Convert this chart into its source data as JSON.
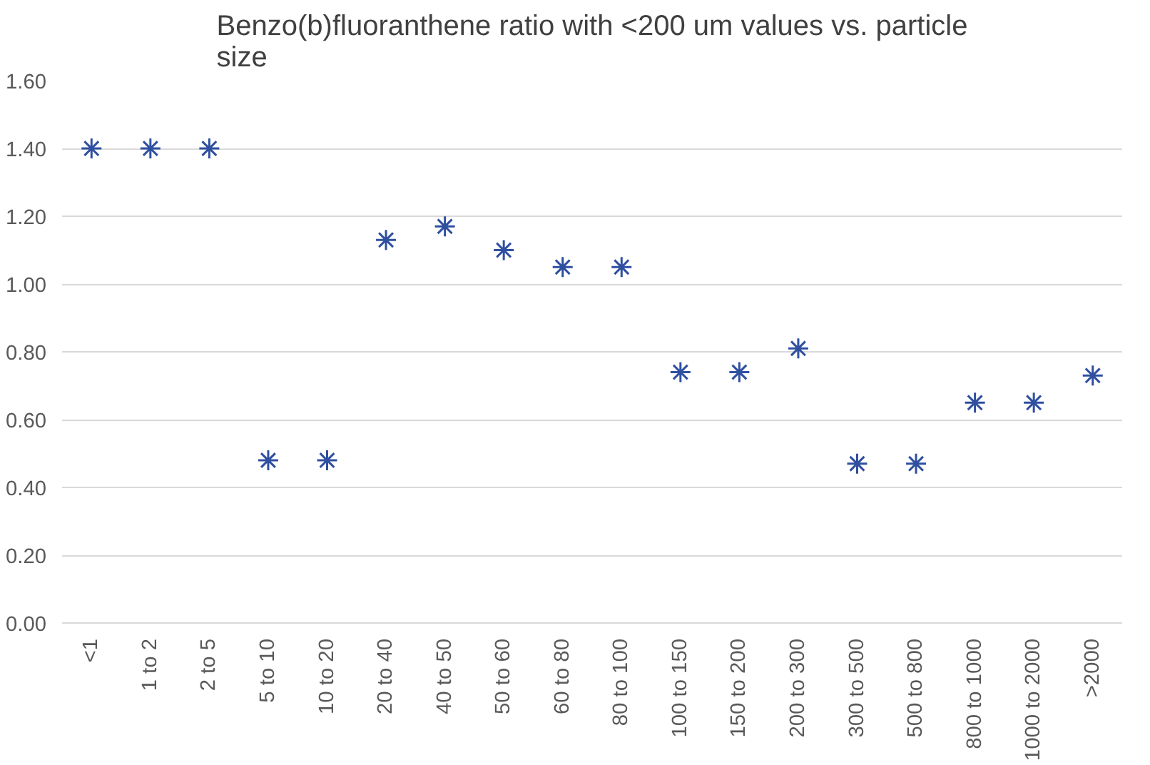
{
  "chart_data": {
    "type": "scatter",
    "title": "Benzo(b)fluoranthene ratio with <200 um values vs. particle size",
    "categories": [
      "<1",
      "1 to 2",
      "2 to 5",
      "5 to 10",
      "10 to 20",
      "20 to 40",
      "40 to 50",
      "50 to 60",
      "60 to 80",
      "80 to 100",
      "100 to 150",
      "150 to 200",
      "200 to 300",
      "300 to 500",
      "500 to 800",
      "800 to 1000",
      "1000 to 2000",
      ">2000"
    ],
    "values": [
      1.4,
      1.4,
      1.4,
      0.48,
      0.48,
      1.13,
      1.17,
      1.1,
      1.05,
      1.05,
      0.74,
      0.74,
      0.81,
      0.47,
      0.47,
      0.65,
      0.65,
      0.73
    ],
    "color": "#2f4fa0",
    "marker": "cross",
    "ylim": [
      0,
      1.6
    ],
    "yticks": [
      {
        "value": 0,
        "label": "0.00"
      },
      {
        "value": 0.2,
        "label": "0.20"
      },
      {
        "value": 0.4,
        "label": "0.40"
      },
      {
        "value": 0.6,
        "label": "0.60"
      },
      {
        "value": 0.8,
        "label": "0.80"
      },
      {
        "value": 1.0,
        "label": "1.00"
      },
      {
        "value": 1.2,
        "label": "1.20"
      },
      {
        "value": 1.4,
        "label": "1.40"
      },
      {
        "value": 1.6,
        "label": "1.60"
      }
    ],
    "grid": "y"
  }
}
